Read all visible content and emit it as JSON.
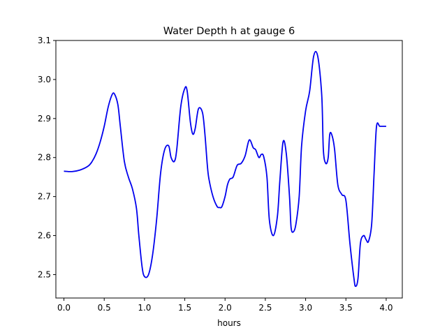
{
  "chart_data": {
    "type": "line",
    "title": "Water Depth h at gauge 6",
    "xlabel": "hours",
    "ylabel": "",
    "xlim": [
      -0.1,
      4.2
    ],
    "ylim": [
      2.44,
      3.1
    ],
    "xticks": [
      0.0,
      0.5,
      1.0,
      1.5,
      2.0,
      2.5,
      3.0,
      3.5,
      4.0
    ],
    "xtick_labels": [
      "0.0",
      "0.5",
      "1.0",
      "1.5",
      "2.0",
      "2.5",
      "3.0",
      "3.5",
      "4.0"
    ],
    "yticks": [
      2.5,
      2.6,
      2.7,
      2.8,
      2.9,
      3.0,
      3.1
    ],
    "ytick_labels": [
      "2.5",
      "2.6",
      "2.7",
      "2.8",
      "2.9",
      "3.0",
      "3.1"
    ],
    "grid": false,
    "series": [
      {
        "color": "#0000ee",
        "x": [
          0.0,
          0.1,
          0.2,
          0.3,
          0.35,
          0.4,
          0.45,
          0.5,
          0.55,
          0.6,
          0.63,
          0.67,
          0.7,
          0.75,
          0.8,
          0.85,
          0.9,
          0.93,
          0.97,
          1.0,
          1.05,
          1.1,
          1.15,
          1.2,
          1.25,
          1.3,
          1.33,
          1.37,
          1.4,
          1.45,
          1.5,
          1.53,
          1.57,
          1.6,
          1.63,
          1.67,
          1.72,
          1.75,
          1.78,
          1.8,
          1.85,
          1.9,
          1.93,
          1.96,
          2.0,
          2.03,
          2.06,
          2.1,
          2.15,
          2.2,
          2.25,
          2.3,
          2.35,
          2.38,
          2.42,
          2.45,
          2.48,
          2.52,
          2.55,
          2.6,
          2.65,
          2.68,
          2.72,
          2.76,
          2.8,
          2.82,
          2.85,
          2.88,
          2.92,
          2.95,
          3.0,
          3.05,
          3.1,
          3.15,
          3.2,
          3.22,
          3.25,
          3.28,
          3.3,
          3.33,
          3.36,
          3.4,
          3.45,
          3.5,
          3.55,
          3.6,
          3.62,
          3.65,
          3.68,
          3.72,
          3.75,
          3.78,
          3.82,
          3.85,
          3.88,
          3.92,
          3.96,
          4.0
        ],
        "y": [
          2.765,
          2.764,
          2.768,
          2.778,
          2.79,
          2.81,
          2.84,
          2.88,
          2.93,
          2.962,
          2.962,
          2.935,
          2.88,
          2.79,
          2.75,
          2.72,
          2.67,
          2.6,
          2.52,
          2.495,
          2.5,
          2.55,
          2.64,
          2.76,
          2.82,
          2.83,
          2.8,
          2.79,
          2.82,
          2.93,
          2.977,
          2.97,
          2.89,
          2.86,
          2.875,
          2.925,
          2.915,
          2.86,
          2.78,
          2.745,
          2.7,
          2.675,
          2.672,
          2.674,
          2.7,
          2.73,
          2.745,
          2.75,
          2.78,
          2.785,
          2.805,
          2.845,
          2.825,
          2.82,
          2.8,
          2.808,
          2.802,
          2.75,
          2.64,
          2.6,
          2.65,
          2.74,
          2.84,
          2.81,
          2.7,
          2.62,
          2.61,
          2.63,
          2.7,
          2.83,
          2.92,
          2.97,
          3.06,
          3.06,
          2.96,
          2.82,
          2.785,
          2.8,
          2.86,
          2.855,
          2.82,
          2.73,
          2.705,
          2.69,
          2.58,
          2.49,
          2.47,
          2.49,
          2.58,
          2.6,
          2.59,
          2.585,
          2.63,
          2.76,
          2.88,
          2.88,
          2.88,
          2.88
        ]
      }
    ]
  }
}
